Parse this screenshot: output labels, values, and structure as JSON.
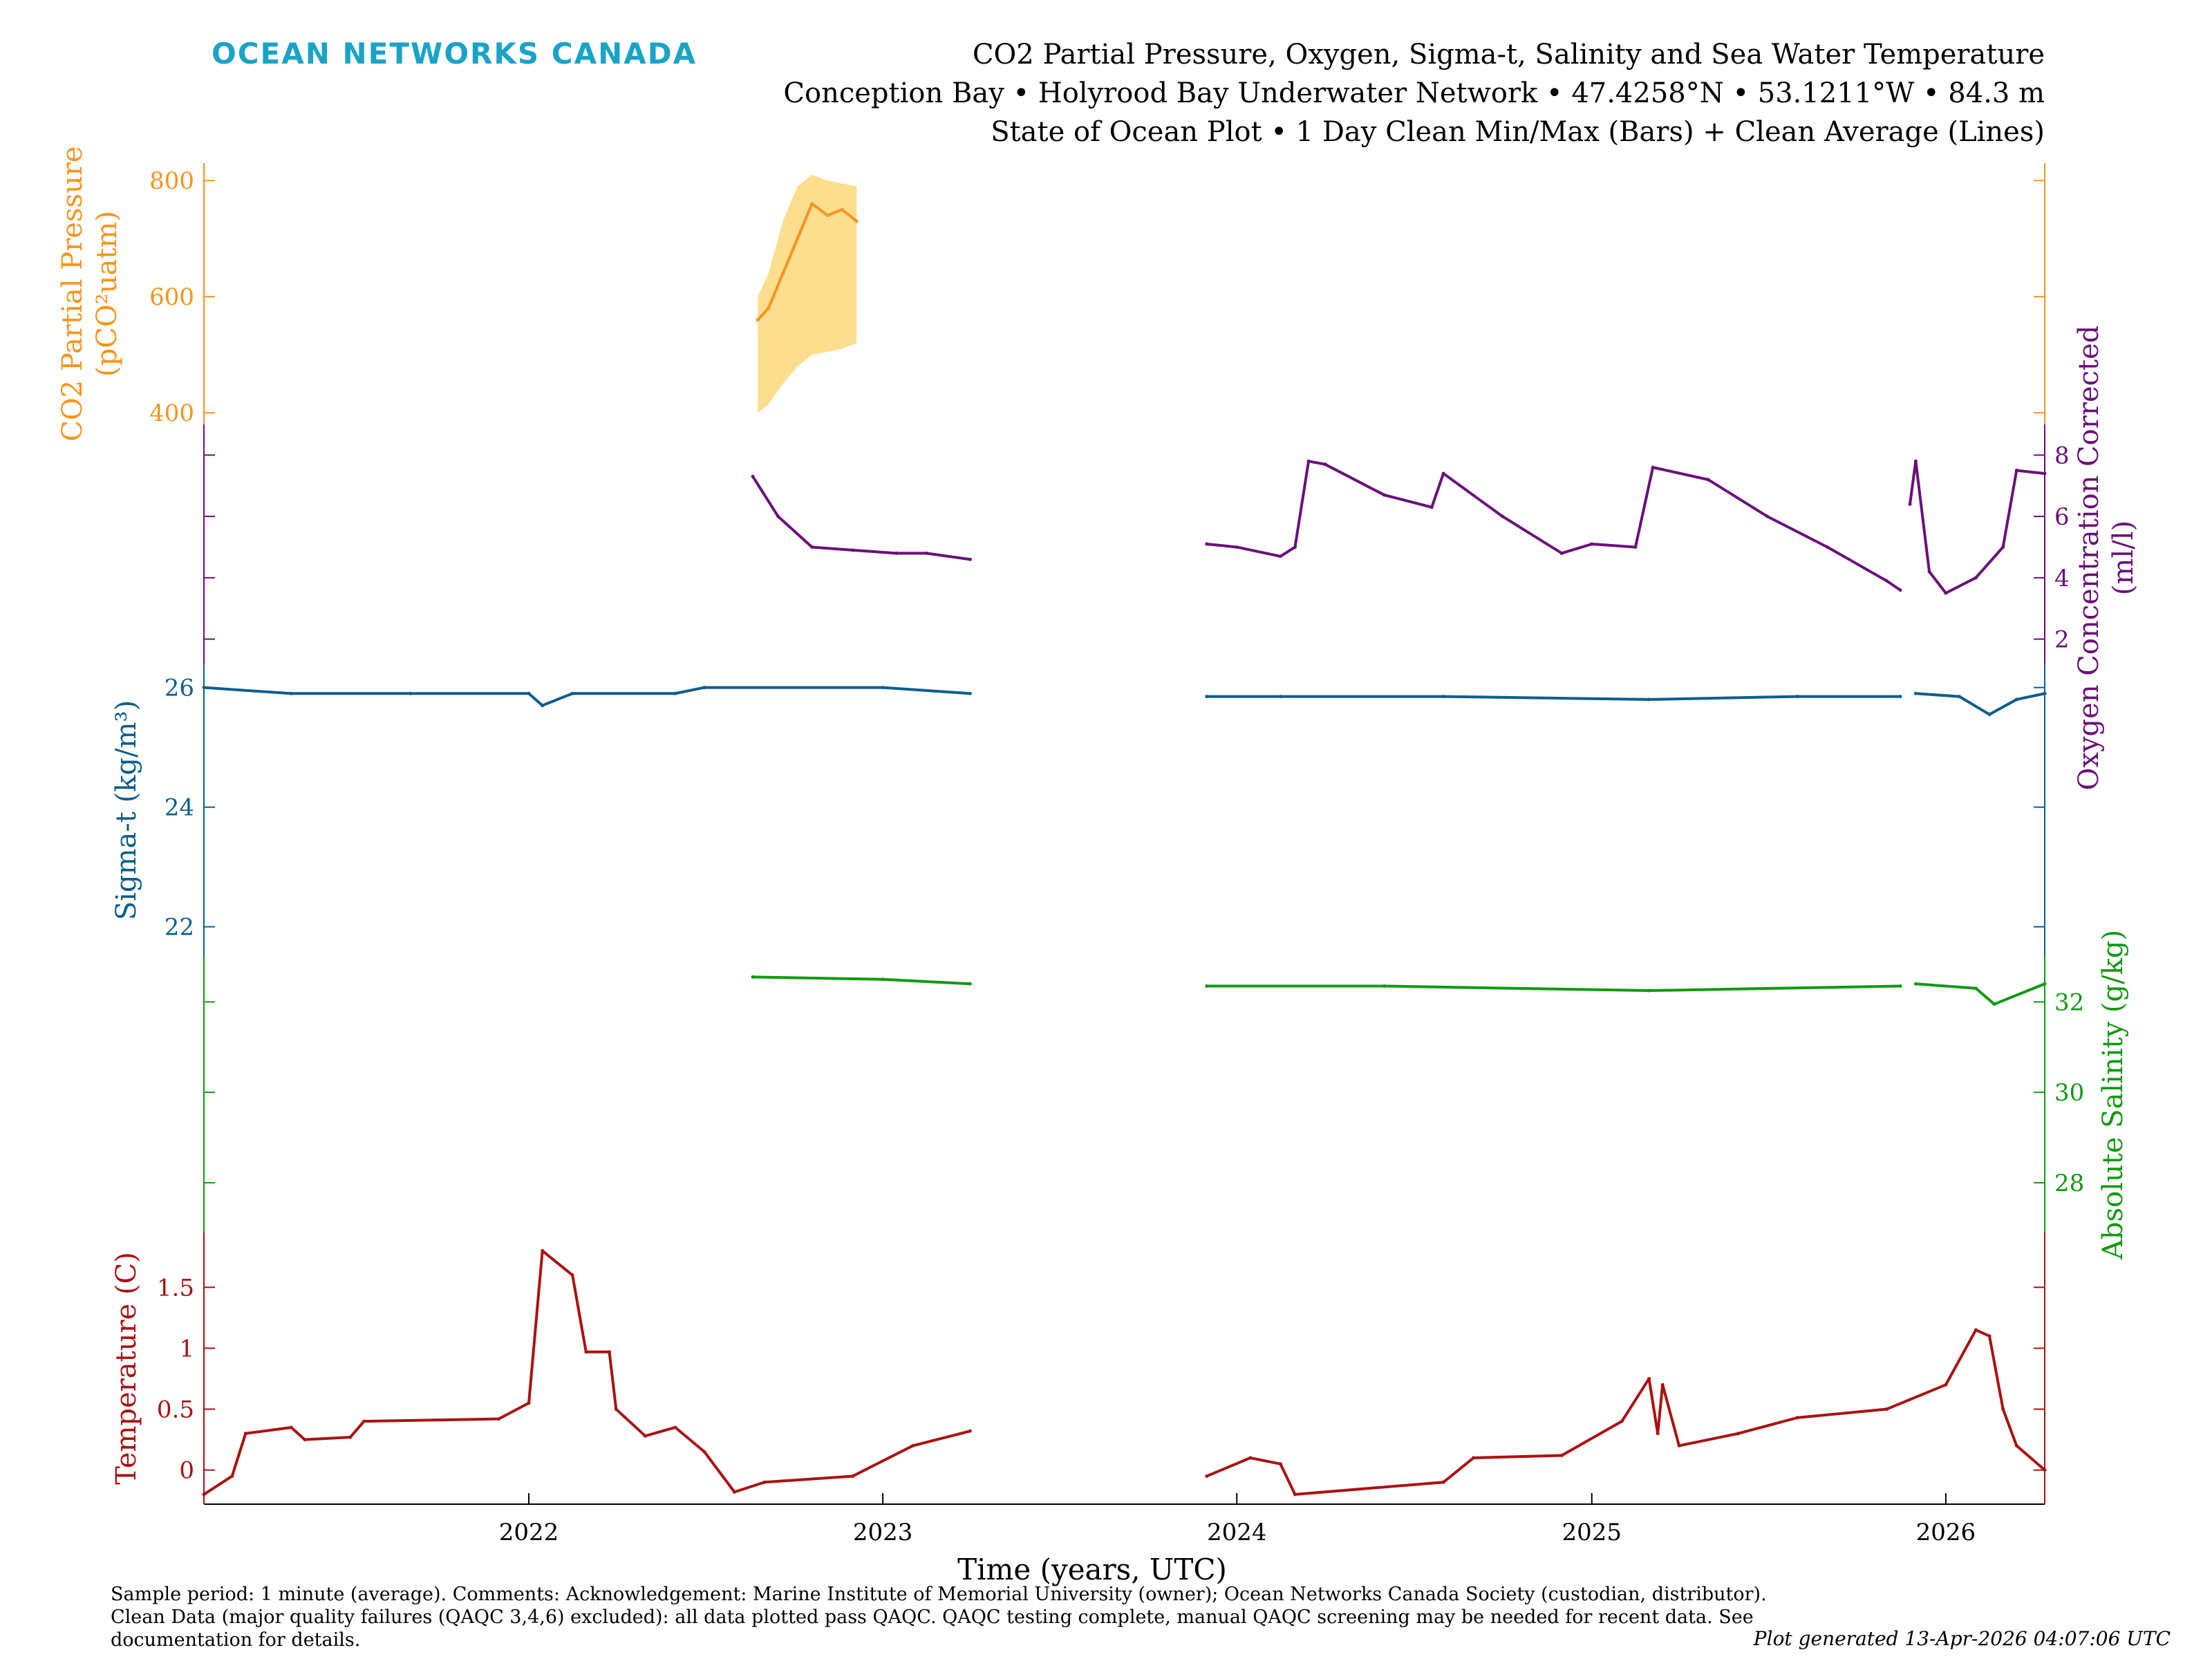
{
  "header": {
    "brand": "OCEAN NETWORKS CANADA",
    "title_lines": [
      "CO2 Partial Pressure, Oxygen, Sigma-t, Salinity and Sea Water Temperature",
      "Conception Bay • Holyrood Bay Underwater Network • 47.4258°N • 53.1211°W • 84.3 m",
      "State of Ocean Plot • 1 Day Clean Min/Max (Bars) + Clean Average (Lines)"
    ]
  },
  "footer": {
    "note": "Sample period: 1 minute (average). Comments: Acknowledgement: Marine Institute of Memorial University (owner); Ocean Networks Canada Society (custodian, distributor). Clean Data (major quality failures (QAQC 3,4,6) excluded): all data plotted pass QAQC. QAQC testing complete, manual QAQC screening may be needed for recent data. See documentation for details.",
    "generated": "Plot generated 13-Apr-2026 04:07:06 UTC"
  },
  "colors": {
    "co2": "#f7941d",
    "co2_band": "#fdd77a",
    "oxygen": "#6a0f7a",
    "oxygen_band": "#c9c6e6",
    "sigma": "#0b5e8c",
    "sigma_band": "#a9c8e4",
    "salinity": "#119911",
    "salinity_band": "#a9c8e4",
    "temperature": "#aa1111",
    "temperature_band": "#b7e3b0"
  },
  "chart_data": {
    "type": "line",
    "xlabel": "Time (years, UTC)",
    "x_ticks": [
      "2022",
      "2023",
      "2024",
      "2025",
      "2026"
    ],
    "xlim": [
      "2021-01-31",
      "2026-04-13"
    ],
    "series": [
      {
        "key": "co2",
        "axis_side": "left",
        "label_lines": [
          "CO2 Partial Pressure",
          "(pCO²uatm)"
        ],
        "ylim": [
          380,
          830
        ],
        "ticks": [
          400,
          600,
          800
        ],
        "mean": [
          [
            {
              "x": "2022-08-25",
              "y": 560
            },
            {
              "x": "2022-09-05",
              "y": 580
            },
            {
              "x": "2022-09-20",
              "y": 640
            },
            {
              "x": "2022-10-05",
              "y": 700
            },
            {
              "x": "2022-10-20",
              "y": 760
            },
            {
              "x": "2022-11-05",
              "y": 740
            },
            {
              "x": "2022-11-20",
              "y": 750
            },
            {
              "x": "2022-12-05",
              "y": 730
            }
          ]
        ],
        "min": [
          [
            {
              "x": "2022-08-25",
              "y": 400
            },
            {
              "x": "2022-09-05",
              "y": 415
            },
            {
              "x": "2022-09-20",
              "y": 450
            },
            {
              "x": "2022-10-05",
              "y": 480
            },
            {
              "x": "2022-10-20",
              "y": 500
            },
            {
              "x": "2022-11-05",
              "y": 505
            },
            {
              "x": "2022-11-20",
              "y": 510
            },
            {
              "x": "2022-12-05",
              "y": 520
            }
          ]
        ],
        "max": [
          [
            {
              "x": "2022-08-25",
              "y": 600
            },
            {
              "x": "2022-09-05",
              "y": 640
            },
            {
              "x": "2022-09-20",
              "y": 730
            },
            {
              "x": "2022-10-05",
              "y": 790
            },
            {
              "x": "2022-10-20",
              "y": 810
            },
            {
              "x": "2022-11-05",
              "y": 800
            },
            {
              "x": "2022-11-20",
              "y": 795
            },
            {
              "x": "2022-12-05",
              "y": 790
            }
          ]
        ]
      },
      {
        "key": "oxygen",
        "axis_side": "right",
        "label_lines": [
          "Oxygen Concentration Corrected",
          "(ml/l)"
        ],
        "ylim": [
          0.3,
          9.0
        ],
        "ticks": [
          2,
          4,
          6,
          8
        ],
        "mean": [
          [
            {
              "x": "2022-08-20",
              "y": 7.3
            },
            {
              "x": "2022-09-15",
              "y": 6.0
            },
            {
              "x": "2022-10-20",
              "y": 5.0
            },
            {
              "x": "2022-12-01",
              "y": 4.9
            },
            {
              "x": "2023-01-15",
              "y": 4.8
            },
            {
              "x": "2023-02-15",
              "y": 4.8
            },
            {
              "x": "2023-04-01",
              "y": 4.6
            }
          ],
          [
            {
              "x": "2023-12-01",
              "y": 5.1
            },
            {
              "x": "2024-01-01",
              "y": 5.0
            },
            {
              "x": "2024-02-15",
              "y": 4.7
            },
            {
              "x": "2024-03-01",
              "y": 5.0
            },
            {
              "x": "2024-03-15",
              "y": 7.8
            },
            {
              "x": "2024-04-01",
              "y": 7.7
            },
            {
              "x": "2024-06-01",
              "y": 6.7
            },
            {
              "x": "2024-07-20",
              "y": 6.3
            },
            {
              "x": "2024-08-01",
              "y": 7.4
            },
            {
              "x": "2024-10-01",
              "y": 6.0
            },
            {
              "x": "2024-12-01",
              "y": 4.8
            },
            {
              "x": "2025-01-01",
              "y": 5.1
            },
            {
              "x": "2025-02-15",
              "y": 5.0
            },
            {
              "x": "2025-03-05",
              "y": 7.6
            },
            {
              "x": "2025-05-01",
              "y": 7.2
            },
            {
              "x": "2025-07-01",
              "y": 6.0
            },
            {
              "x": "2025-09-01",
              "y": 5.0
            },
            {
              "x": "2025-11-01",
              "y": 3.9
            },
            {
              "x": "2025-11-15",
              "y": 3.6
            }
          ],
          [
            {
              "x": "2025-11-25",
              "y": 6.4
            },
            {
              "x": "2025-12-01",
              "y": 7.8
            },
            {
              "x": "2025-12-15",
              "y": 4.2
            },
            {
              "x": "2026-01-01",
              "y": 3.5
            },
            {
              "x": "2026-02-01",
              "y": 4.0
            },
            {
              "x": "2026-03-01",
              "y": 5.0
            },
            {
              "x": "2026-03-15",
              "y": 7.5
            },
            {
              "x": "2026-04-13",
              "y": 7.4
            }
          ]
        ]
      },
      {
        "key": "sigma",
        "axis_side": "left",
        "label_lines": [
          "Sigma-t (kg/m³)"
        ],
        "ylim": [
          21.5,
          26.4
        ],
        "ticks": [
          22,
          24,
          26
        ],
        "mean": [
          [
            {
              "x": "2021-01-31",
              "y": 26.0
            },
            {
              "x": "2021-05-01",
              "y": 25.9
            },
            {
              "x": "2021-09-01",
              "y": 25.9
            },
            {
              "x": "2022-01-01",
              "y": 25.9
            },
            {
              "x": "2022-01-15",
              "y": 25.7
            },
            {
              "x": "2022-02-15",
              "y": 25.9
            },
            {
              "x": "2022-06-01",
              "y": 25.9
            },
            {
              "x": "2022-07-01",
              "y": 26.0
            },
            {
              "x": "2023-01-01",
              "y": 26.0
            },
            {
              "x": "2023-04-01",
              "y": 25.9
            }
          ],
          [
            {
              "x": "2023-12-01",
              "y": 25.85
            },
            {
              "x": "2024-02-15",
              "y": 25.85
            },
            {
              "x": "2024-08-01",
              "y": 25.85
            },
            {
              "x": "2025-03-01",
              "y": 25.8
            },
            {
              "x": "2025-08-01",
              "y": 25.85
            },
            {
              "x": "2025-11-15",
              "y": 25.85
            }
          ],
          [
            {
              "x": "2025-12-01",
              "y": 25.9
            },
            {
              "x": "2026-01-15",
              "y": 25.85
            },
            {
              "x": "2026-02-15",
              "y": 25.55
            },
            {
              "x": "2026-03-15",
              "y": 25.8
            },
            {
              "x": "2026-04-13",
              "y": 25.9
            }
          ]
        ]
      },
      {
        "key": "salinity",
        "axis_side": "right",
        "label_lines": [
          "Absolute Salinity (g/kg)"
        ],
        "ylim": [
          26.9,
          33.0
        ],
        "ticks": [
          28,
          30,
          32
        ],
        "mean": [
          [
            {
              "x": "2022-08-20",
              "y": 32.55
            },
            {
              "x": "2023-01-01",
              "y": 32.5
            },
            {
              "x": "2023-04-01",
              "y": 32.4
            }
          ],
          [
            {
              "x": "2023-12-01",
              "y": 32.35
            },
            {
              "x": "2024-06-01",
              "y": 32.35
            },
            {
              "x": "2025-03-01",
              "y": 32.25
            },
            {
              "x": "2025-11-15",
              "y": 32.35
            }
          ],
          [
            {
              "x": "2025-12-01",
              "y": 32.4
            },
            {
              "x": "2026-02-01",
              "y": 32.3
            },
            {
              "x": "2026-02-20",
              "y": 31.95
            },
            {
              "x": "2026-04-13",
              "y": 32.4
            }
          ]
        ]
      },
      {
        "key": "temperature",
        "axis_side": "left",
        "label_lines": [
          "Temperature (C)"
        ],
        "ylim": [
          -0.28,
          1.95
        ],
        "ticks": [
          0,
          0.5,
          1,
          1.5
        ],
        "tick_labels": [
          "0",
          "0.5",
          "1",
          "1.5"
        ],
        "mean": [
          [
            {
              "x": "2021-01-31",
              "y": -0.2
            },
            {
              "x": "2021-03-01",
              "y": -0.05
            },
            {
              "x": "2021-03-15",
              "y": 0.3
            },
            {
              "x": "2021-05-01",
              "y": 0.35
            },
            {
              "x": "2021-05-15",
              "y": 0.25
            },
            {
              "x": "2021-07-01",
              "y": 0.27
            },
            {
              "x": "2021-07-15",
              "y": 0.4
            },
            {
              "x": "2021-12-01",
              "y": 0.42
            },
            {
              "x": "2022-01-01",
              "y": 0.55
            },
            {
              "x": "2022-01-15",
              "y": 1.8
            },
            {
              "x": "2022-02-15",
              "y": 1.6
            },
            {
              "x": "2022-03-01",
              "y": 0.97
            },
            {
              "x": "2022-03-25",
              "y": 0.97
            },
            {
              "x": "2022-04-01",
              "y": 0.5
            },
            {
              "x": "2022-05-01",
              "y": 0.28
            },
            {
              "x": "2022-06-01",
              "y": 0.35
            },
            {
              "x": "2022-07-01",
              "y": 0.15
            },
            {
              "x": "2022-08-01",
              "y": -0.18
            },
            {
              "x": "2022-09-01",
              "y": -0.1
            },
            {
              "x": "2022-12-01",
              "y": -0.05
            },
            {
              "x": "2023-02-01",
              "y": 0.2
            },
            {
              "x": "2023-04-01",
              "y": 0.32
            }
          ],
          [
            {
              "x": "2023-12-01",
              "y": -0.05
            },
            {
              "x": "2024-01-15",
              "y": 0.1
            },
            {
              "x": "2024-02-15",
              "y": 0.05
            },
            {
              "x": "2024-03-01",
              "y": -0.2
            },
            {
              "x": "2024-08-01",
              "y": -0.1
            },
            {
              "x": "2024-09-01",
              "y": 0.1
            },
            {
              "x": "2024-12-01",
              "y": 0.12
            },
            {
              "x": "2025-02-01",
              "y": 0.4
            },
            {
              "x": "2025-03-01",
              "y": 0.75
            },
            {
              "x": "2025-03-10",
              "y": 0.3
            },
            {
              "x": "2025-03-15",
              "y": 0.7
            },
            {
              "x": "2025-04-01",
              "y": 0.2
            },
            {
              "x": "2025-06-01",
              "y": 0.3
            },
            {
              "x": "2025-08-01",
              "y": 0.43
            },
            {
              "x": "2025-11-01",
              "y": 0.5
            },
            {
              "x": "2026-01-01",
              "y": 0.7
            },
            {
              "x": "2026-02-01",
              "y": 1.15
            },
            {
              "x": "2026-02-15",
              "y": 1.1
            },
            {
              "x": "2026-03-01",
              "y": 0.5
            },
            {
              "x": "2026-03-15",
              "y": 0.2
            },
            {
              "x": "2026-04-13",
              "y": 0.0
            }
          ]
        ]
      }
    ]
  }
}
